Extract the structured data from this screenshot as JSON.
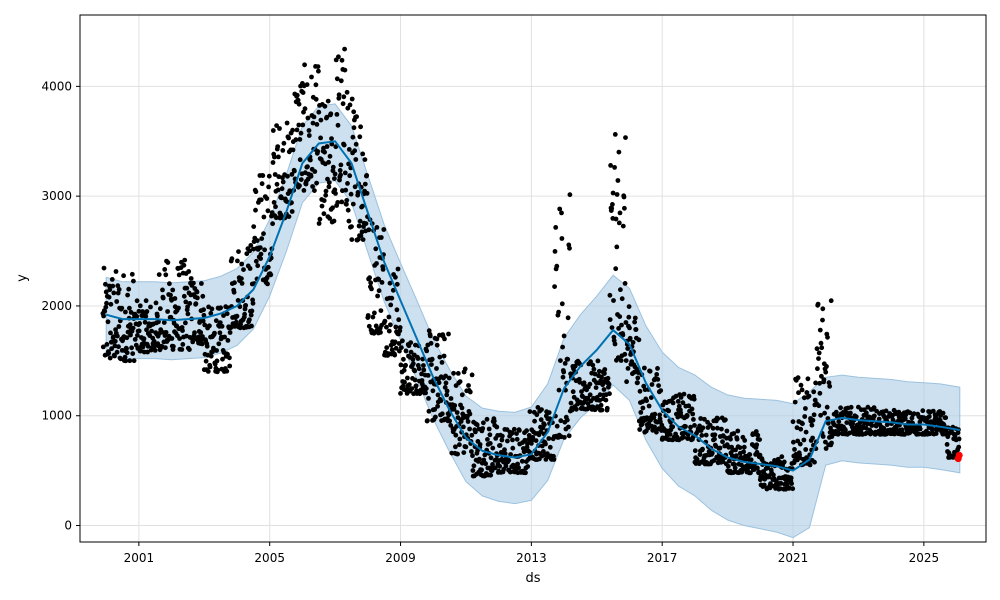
{
  "chart_data": {
    "type": "line",
    "title": "",
    "xlabel": "ds",
    "ylabel": "y",
    "xlim": [
      1999.2,
      2026.9
    ],
    "ylim": [
      -150,
      4650
    ],
    "x_ticks": [
      2001,
      2005,
      2009,
      2013,
      2017,
      2021,
      2025
    ],
    "x_tick_labels": [
      "2001",
      "2005",
      "2009",
      "2013",
      "2017",
      "2021",
      "2025"
    ],
    "y_ticks": [
      0,
      1000,
      2000,
      3000,
      4000
    ],
    "y_tick_labels": [
      "0",
      "1000",
      "2000",
      "3000",
      "4000"
    ],
    "grid": true,
    "colors": {
      "observed": "#000000",
      "forecast": "#0072B2",
      "interval": "#b0cfe6",
      "highlight": "#ff0000"
    },
    "series": [
      {
        "role": "forecast",
        "x": [
          2000.0,
          2000.5,
          2001.0,
          2001.5,
          2002.0,
          2002.5,
          2003.0,
          2003.5,
          2004.0,
          2004.5,
          2005.0,
          2005.5,
          2006.0,
          2006.5,
          2007.0,
          2007.5,
          2008.0,
          2008.5,
          2009.0,
          2009.5,
          2010.0,
          2010.5,
          2011.0,
          2011.5,
          2012.0,
          2012.5,
          2013.0,
          2013.5,
          2014.0,
          2014.5,
          2015.0,
          2015.5,
          2016.0,
          2016.5,
          2017.0,
          2017.5,
          2018.0,
          2018.5,
          2019.0,
          2019.5,
          2020.0,
          2020.5,
          2021.0,
          2021.5,
          2022.0,
          2022.5,
          2023.0,
          2023.5,
          2024.0,
          2024.5,
          2025.0,
          2025.5,
          2026.1
        ],
        "y": [
          1920,
          1880,
          1880,
          1880,
          1870,
          1880,
          1890,
          1930,
          2000,
          2150,
          2450,
          2850,
          3300,
          3480,
          3500,
          3300,
          2850,
          2400,
          2050,
          1700,
          1350,
          1050,
          800,
          680,
          640,
          620,
          650,
          850,
          1250,
          1450,
          1600,
          1780,
          1650,
          1300,
          1050,
          900,
          820,
          700,
          620,
          580,
          560,
          540,
          500,
          600,
          950,
          980,
          960,
          950,
          940,
          920,
          920,
          900,
          870
        ]
      },
      {
        "role": "interval",
        "x": [
          2000.0,
          2000.5,
          2001.0,
          2001.5,
          2002.0,
          2002.5,
          2003.0,
          2003.5,
          2004.0,
          2004.5,
          2005.0,
          2005.5,
          2006.0,
          2006.5,
          2007.0,
          2007.5,
          2008.0,
          2008.5,
          2009.0,
          2009.5,
          2010.0,
          2010.5,
          2011.0,
          2011.5,
          2012.0,
          2012.5,
          2013.0,
          2013.5,
          2014.0,
          2014.5,
          2015.0,
          2015.5,
          2016.0,
          2016.5,
          2017.0,
          2017.5,
          2018.0,
          2018.5,
          2019.0,
          2019.5,
          2020.0,
          2020.5,
          2021.0,
          2021.5,
          2022.0,
          2022.5,
          2023.0,
          2023.5,
          2024.0,
          2024.5,
          2025.0,
          2025.5,
          2026.1
        ],
        "upper": [
          2260,
          2220,
          2220,
          2220,
          2210,
          2220,
          2230,
          2270,
          2340,
          2490,
          2790,
          3190,
          3640,
          3820,
          3840,
          3640,
          3190,
          2740,
          2390,
          2050,
          1700,
          1420,
          1180,
          1070,
          1040,
          1030,
          1080,
          1290,
          1710,
          1920,
          2090,
          2280,
          2160,
          1820,
          1580,
          1440,
          1370,
          1260,
          1190,
          1160,
          1150,
          1140,
          1110,
          1220,
          1350,
          1370,
          1350,
          1340,
          1330,
          1310,
          1300,
          1290,
          1260
        ],
        "lower": [
          1560,
          1520,
          1520,
          1520,
          1510,
          1520,
          1530,
          1570,
          1640,
          1790,
          2090,
          2490,
          2940,
          3120,
          3140,
          2940,
          2490,
          2040,
          1690,
          1330,
          970,
          670,
          400,
          270,
          220,
          200,
          230,
          410,
          790,
          980,
          1110,
          1280,
          1140,
          780,
          520,
          360,
          270,
          140,
          50,
          0,
          -30,
          -60,
          -110,
          -20,
          550,
          590,
          570,
          560,
          550,
          530,
          530,
          510,
          480
        ]
      }
    ],
    "scatter_bands": [
      {
        "x0": 1999.9,
        "x1": 2000.9,
        "lo": 1500,
        "hi": 2350
      },
      {
        "x0": 2000.9,
        "x1": 2001.6,
        "lo": 1580,
        "hi": 2050
      },
      {
        "x0": 2001.6,
        "x1": 2002.6,
        "lo": 1600,
        "hi": 2430
      },
      {
        "x0": 2002.6,
        "x1": 2003.0,
        "lo": 1650,
        "hi": 2300
      },
      {
        "x0": 2003.0,
        "x1": 2003.8,
        "lo": 1400,
        "hi": 2000
      },
      {
        "x0": 2003.8,
        "x1": 2004.5,
        "lo": 1800,
        "hi": 2600
      },
      {
        "x0": 2004.5,
        "x1": 2005.1,
        "lo": 2200,
        "hi": 3250
      },
      {
        "x0": 2005.1,
        "x1": 2005.7,
        "lo": 2800,
        "hi": 3700
      },
      {
        "x0": 2005.7,
        "x1": 2006.5,
        "lo": 3050,
        "hi": 4200
      },
      {
        "x0": 2006.5,
        "x1": 2007.0,
        "lo": 2750,
        "hi": 3900
      },
      {
        "x0": 2007.0,
        "x1": 2007.4,
        "lo": 2900,
        "hi": 4420
      },
      {
        "x0": 2007.4,
        "x1": 2008.0,
        "lo": 2600,
        "hi": 3950
      },
      {
        "x0": 2008.0,
        "x1": 2008.5,
        "lo": 1750,
        "hi": 2900
      },
      {
        "x0": 2008.5,
        "x1": 2009.0,
        "lo": 1550,
        "hi": 2400
      },
      {
        "x0": 2009.0,
        "x1": 2009.8,
        "lo": 1200,
        "hi": 1700
      },
      {
        "x0": 2009.8,
        "x1": 2010.5,
        "lo": 950,
        "hi": 1780
      },
      {
        "x0": 2010.5,
        "x1": 2011.2,
        "lo": 650,
        "hi": 1500
      },
      {
        "x0": 2011.2,
        "x1": 2012.0,
        "lo": 450,
        "hi": 1000
      },
      {
        "x0": 2012.0,
        "x1": 2012.9,
        "lo": 480,
        "hi": 900
      },
      {
        "x0": 2012.9,
        "x1": 2013.7,
        "lo": 600,
        "hi": 1100
      },
      {
        "x0": 2013.7,
        "x1": 2014.2,
        "lo": 800,
        "hi": 3080
      },
      {
        "x0": 2014.2,
        "x1": 2015.4,
        "lo": 1050,
        "hi": 1500
      },
      {
        "x0": 2015.4,
        "x1": 2015.9,
        "lo": 1500,
        "hi": 3580
      },
      {
        "x0": 2015.9,
        "x1": 2016.3,
        "lo": 1300,
        "hi": 2000
      },
      {
        "x0": 2016.3,
        "x1": 2017.0,
        "lo": 850,
        "hi": 1450
      },
      {
        "x0": 2017.0,
        "x1": 2018.0,
        "lo": 780,
        "hi": 1200
      },
      {
        "x0": 2018.0,
        "x1": 2019.0,
        "lo": 560,
        "hi": 1000
      },
      {
        "x0": 2019.0,
        "x1": 2020.0,
        "lo": 480,
        "hi": 870
      },
      {
        "x0": 2020.0,
        "x1": 2021.0,
        "lo": 330,
        "hi": 640
      },
      {
        "x0": 2021.0,
        "x1": 2021.7,
        "lo": 550,
        "hi": 1350
      },
      {
        "x0": 2021.7,
        "x1": 2022.2,
        "lo": 700,
        "hi": 2290
      },
      {
        "x0": 2022.2,
        "x1": 2023.5,
        "lo": 830,
        "hi": 1080
      },
      {
        "x0": 2023.5,
        "x1": 2025.7,
        "lo": 830,
        "hi": 1050
      },
      {
        "x0": 2025.7,
        "x1": 2026.1,
        "lo": 620,
        "hi": 900
      }
    ],
    "highlight_points": [
      {
        "x": 2026.05,
        "y": 610
      },
      {
        "x": 2026.08,
        "y": 640
      }
    ]
  }
}
